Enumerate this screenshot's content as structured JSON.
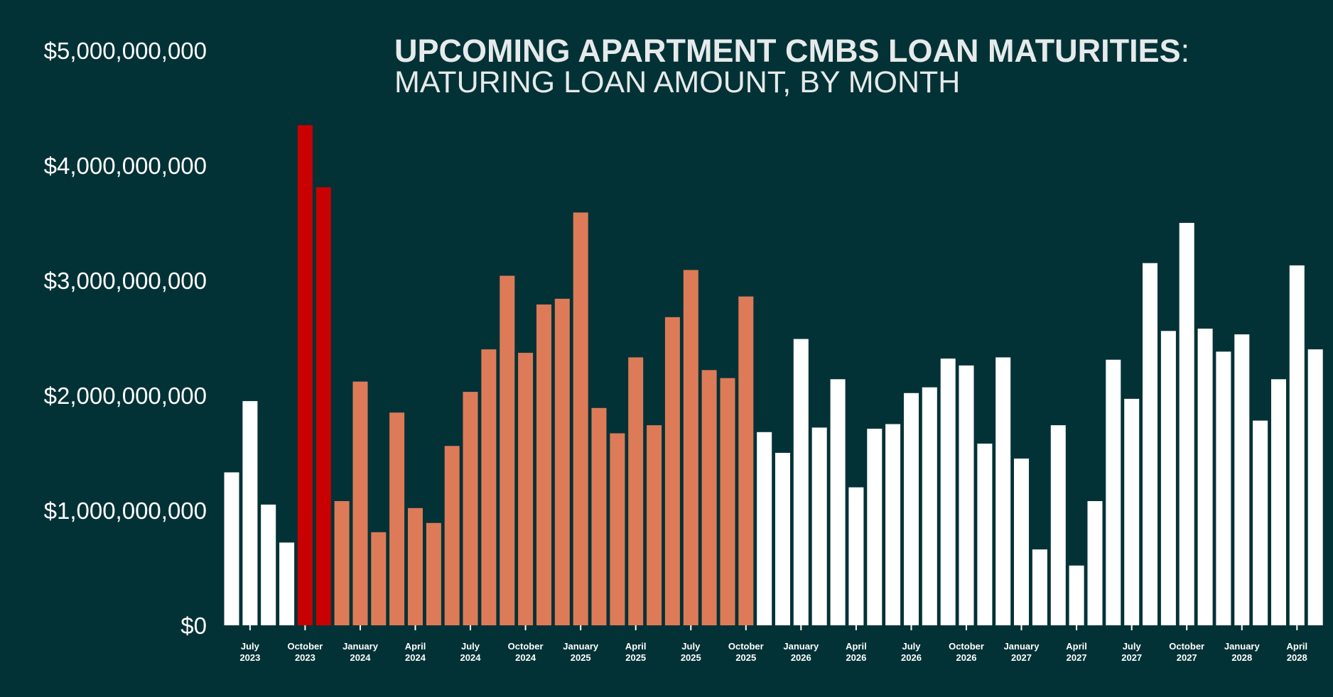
{
  "colors": {
    "background": "#033236",
    "default_bar": "#ffffff",
    "current_bar": "#c90002",
    "mid_bar": "#dd7b58",
    "text": "#e6eaea"
  },
  "chart_data": {
    "type": "bar",
    "title": "UPCOMING APARTMENT CMBS LOAN MATURITIES",
    "title_suffix": ":",
    "subtitle": "MATURING LOAN AMOUNT, BY MONTH",
    "ylim": [
      0,
      5000000000
    ],
    "y_ticks": [
      "$0",
      "$1,000,000,000",
      "$2,000,000,000",
      "$3,000,000,000",
      "$4,000,000,000",
      "$5,000,000,000"
    ],
    "x_ticks": [
      {
        "index": 1,
        "month": "July",
        "year": "2023"
      },
      {
        "index": 4,
        "month": "October",
        "year": "2023"
      },
      {
        "index": 7,
        "month": "January",
        "year": "2024"
      },
      {
        "index": 10,
        "month": "April",
        "year": "2024"
      },
      {
        "index": 13,
        "month": "July",
        "year": "2024"
      },
      {
        "index": 16,
        "month": "October",
        "year": "2024"
      },
      {
        "index": 19,
        "month": "January",
        "year": "2025"
      },
      {
        "index": 22,
        "month": "April",
        "year": "2025"
      },
      {
        "index": 25,
        "month": "July",
        "year": "2025"
      },
      {
        "index": 28,
        "month": "October",
        "year": "2025"
      },
      {
        "index": 31,
        "month": "January",
        "year": "2026"
      },
      {
        "index": 34,
        "month": "April",
        "year": "2026"
      },
      {
        "index": 37,
        "month": "July",
        "year": "2026"
      },
      {
        "index": 40,
        "month": "October",
        "year": "2026"
      },
      {
        "index": 43,
        "month": "January",
        "year": "2027"
      },
      {
        "index": 46,
        "month": "April",
        "year": "2027"
      },
      {
        "index": 49,
        "month": "July",
        "year": "2027"
      },
      {
        "index": 52,
        "month": "October",
        "year": "2027"
      },
      {
        "index": 55,
        "month": "January",
        "year": "2028"
      },
      {
        "index": 58,
        "month": "April",
        "year": "2028"
      }
    ],
    "categories": [
      "2023-06",
      "2023-07",
      "2023-08",
      "2023-09",
      "2023-10",
      "2023-11",
      "2023-12",
      "2024-01",
      "2024-02",
      "2024-03",
      "2024-04",
      "2024-05",
      "2024-06",
      "2024-07",
      "2024-08",
      "2024-09",
      "2024-10",
      "2024-11",
      "2024-12",
      "2025-01",
      "2025-02",
      "2025-03",
      "2025-04",
      "2025-05",
      "2025-06",
      "2025-07",
      "2025-08",
      "2025-09",
      "2025-10",
      "2025-11",
      "2025-12",
      "2026-01",
      "2026-02",
      "2026-03",
      "2026-04",
      "2026-05",
      "2026-06",
      "2026-07",
      "2026-08",
      "2026-09",
      "2026-10",
      "2026-11",
      "2026-12",
      "2027-01",
      "2027-02",
      "2027-03",
      "2027-04",
      "2027-05",
      "2027-06",
      "2027-07",
      "2027-08",
      "2027-09",
      "2027-10",
      "2027-11",
      "2027-12",
      "2028-01",
      "2028-02",
      "2028-03",
      "2028-04",
      "2028-05"
    ],
    "values": [
      1330000000,
      1950000000,
      1050000000,
      720000000,
      4350000000,
      3810000000,
      1080000000,
      2120000000,
      810000000,
      1850000000,
      1020000000,
      890000000,
      1560000000,
      2030000000,
      2400000000,
      3040000000,
      2370000000,
      2790000000,
      2840000000,
      3590000000,
      1890000000,
      1670000000,
      2330000000,
      1740000000,
      2680000000,
      3090000000,
      2220000000,
      2150000000,
      2860000000,
      1680000000,
      1500000000,
      2490000000,
      1720000000,
      2140000000,
      1200000000,
      1710000000,
      1750000000,
      2020000000,
      2070000000,
      2320000000,
      2260000000,
      1580000000,
      2330000000,
      1450000000,
      660000000,
      1740000000,
      520000000,
      1080000000,
      2310000000,
      1970000000,
      3150000000,
      2560000000,
      3500000000,
      2580000000,
      2380000000,
      2530000000,
      1780000000,
      2140000000,
      3130000000,
      2400000000
    ],
    "colors": [
      "default",
      "default",
      "default",
      "default",
      "current",
      "current",
      "mid",
      "mid",
      "mid",
      "mid",
      "mid",
      "mid",
      "mid",
      "mid",
      "mid",
      "mid",
      "mid",
      "mid",
      "mid",
      "mid",
      "mid",
      "mid",
      "mid",
      "mid",
      "mid",
      "mid",
      "mid",
      "mid",
      "mid",
      "default",
      "default",
      "default",
      "default",
      "default",
      "default",
      "default",
      "default",
      "default",
      "default",
      "default",
      "default",
      "default",
      "default",
      "default",
      "default",
      "default",
      "default",
      "default",
      "default",
      "default",
      "default",
      "default",
      "default",
      "default",
      "default",
      "default",
      "default",
      "default",
      "default",
      "default"
    ],
    "grid": false,
    "legend": "none"
  }
}
